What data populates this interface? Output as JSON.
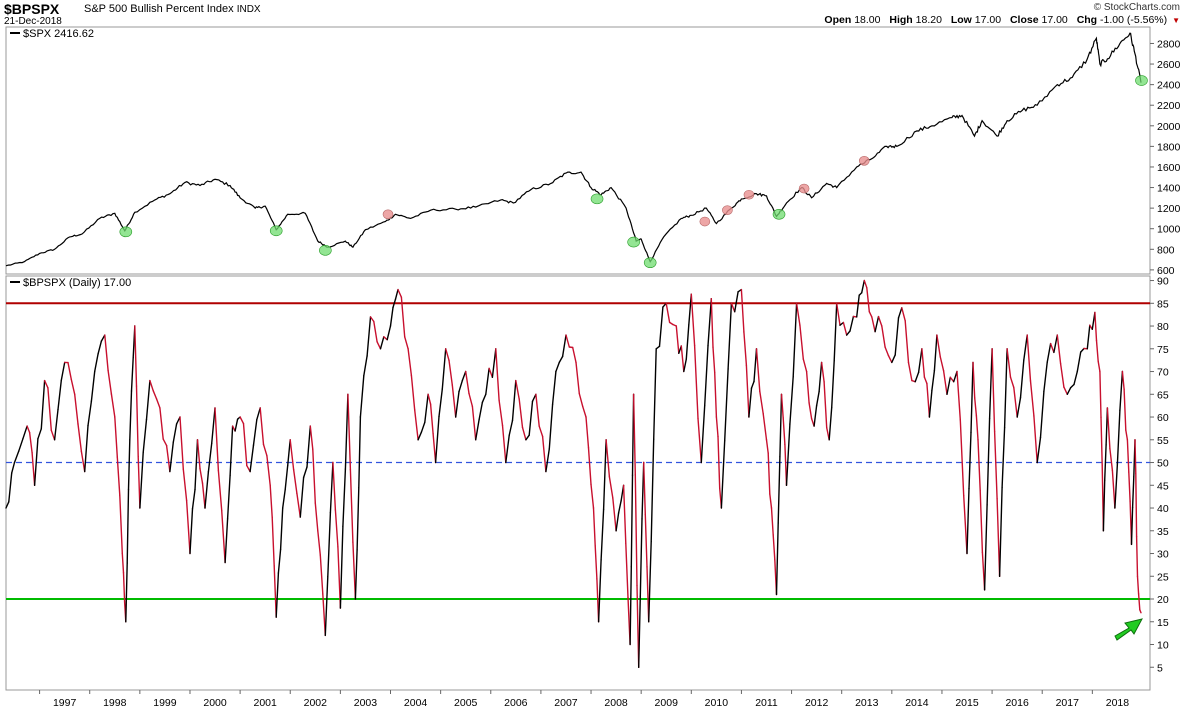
{
  "header": {
    "symbol": "$BPSPX",
    "name": "S&P 500 Bullish Percent Index",
    "exchange": "INDX",
    "date": "21-Dec-2018",
    "credit": "© StockCharts.com",
    "quote": {
      "open_label": "Open",
      "open": "18.00",
      "high_label": "High",
      "high": "18.20",
      "low_label": "Low",
      "low": "17.00",
      "close_label": "Close",
      "close": "17.00",
      "chg_label": "Chg",
      "chg": "-1.00 (-5.56%)"
    }
  },
  "colors": {
    "spx_line": "#000000",
    "bp_line_up": "#000000",
    "bp_line_down": "#c8102e",
    "upper_line": "#b00000",
    "mid_line": "#3355dd",
    "lower_line": "#00bb00",
    "low_marker": "#6fdc6f",
    "high_marker": "#e89090",
    "arrow": "#22cc22"
  },
  "chart_data": [
    {
      "type": "line",
      "legend": "$SPX 2416.62",
      "y_ticks": [
        600,
        800,
        1000,
        1200,
        1400,
        1600,
        1800,
        2000,
        2200,
        2400,
        2600,
        2800
      ],
      "ylim": [
        560,
        2960
      ],
      "x": [
        1996.33,
        1996.7,
        1997.0,
        1997.3,
        1997.6,
        1997.85,
        1998.2,
        1998.5,
        1998.7,
        1998.9,
        1999.3,
        1999.6,
        1999.9,
        2000.2,
        2000.5,
        2000.8,
        2001.0,
        2001.3,
        2001.5,
        2001.72,
        2001.95,
        2002.3,
        2002.55,
        2002.75,
        2003.1,
        2003.25,
        2003.5,
        2003.9,
        2004.1,
        2004.4,
        2004.8,
        2005.3,
        2005.7,
        2006.2,
        2006.45,
        2006.8,
        2007.2,
        2007.5,
        2007.8,
        2008.0,
        2008.2,
        2008.4,
        2008.7,
        2008.9,
        2009.0,
        2009.18,
        2009.45,
        2009.8,
        2010.0,
        2010.3,
        2010.5,
        2010.8,
        2011.0,
        2011.3,
        2011.5,
        2011.7,
        2011.9,
        2012.2,
        2012.4,
        2012.7,
        2012.9,
        2013.3,
        2013.6,
        2013.9,
        2014.1,
        2014.5,
        2014.8,
        2015.2,
        2015.4,
        2015.65,
        2015.8,
        2016.1,
        2016.3,
        2016.6,
        2016.9,
        2017.3,
        2017.6,
        2017.9,
        2018.08,
        2018.15,
        2018.3,
        2018.55,
        2018.75,
        2018.85,
        2018.97
      ],
      "values": [
        640,
        680,
        760,
        800,
        920,
        950,
        1100,
        1150,
        980,
        1160,
        1280,
        1340,
        1450,
        1420,
        1480,
        1420,
        1300,
        1200,
        1220,
        990,
        1140,
        1150,
        880,
        820,
        880,
        820,
        990,
        1070,
        1140,
        1100,
        1180,
        1190,
        1210,
        1280,
        1250,
        1380,
        1440,
        1540,
        1550,
        1400,
        1330,
        1400,
        1200,
        880,
        900,
        680,
        920,
        1100,
        1130,
        1200,
        1050,
        1200,
        1290,
        1340,
        1320,
        1120,
        1250,
        1400,
        1300,
        1440,
        1400,
        1600,
        1680,
        1800,
        1800,
        1950,
        2000,
        2080,
        2100,
        1900,
        2050,
        1900,
        2050,
        2150,
        2200,
        2400,
        2470,
        2650,
        2850,
        2600,
        2650,
        2800,
        2900,
        2700,
        2420
      ],
      "low_markers": [
        [
          1998.72,
          970
        ],
        [
          2001.72,
          980
        ],
        [
          2002.7,
          790
        ],
        [
          2008.12,
          1290
        ],
        [
          2008.85,
          870
        ],
        [
          2009.18,
          670
        ],
        [
          2011.75,
          1140
        ],
        [
          2018.98,
          2440
        ]
      ],
      "high_markers": [
        [
          2003.95,
          1140
        ],
        [
          2010.27,
          1070
        ],
        [
          2010.72,
          1180
        ],
        [
          2011.15,
          1330
        ],
        [
          2012.25,
          1390
        ],
        [
          2013.45,
          1660
        ]
      ]
    },
    {
      "type": "line",
      "legend": "$BPSPX (Daily) 17.00",
      "y_ticks": [
        5,
        10,
        15,
        20,
        25,
        30,
        35,
        40,
        45,
        50,
        55,
        60,
        65,
        70,
        75,
        80,
        85,
        90
      ],
      "ylim": [
        0,
        91
      ],
      "x_ticks": [
        "1997",
        "1998",
        "1999",
        "2000",
        "2001",
        "2002",
        "2003",
        "2004",
        "2005",
        "2006",
        "2007",
        "2008",
        "2009",
        "2010",
        "2011",
        "2012",
        "2013",
        "2014",
        "2015",
        "2016",
        "2017",
        "2018"
      ],
      "xlim": [
        1996.33,
        2019.15
      ],
      "reference_lines": {
        "upper": 85,
        "middle": 50,
        "lower": 20
      },
      "x": [
        1996.33,
        1996.5,
        1996.75,
        1996.9,
        1997.1,
        1997.3,
        1997.5,
        1997.7,
        1997.9,
        1998.1,
        1998.3,
        1998.5,
        1998.65,
        1998.72,
        1998.8,
        1998.9,
        1999.0,
        1999.2,
        1999.4,
        1999.6,
        1999.8,
        2000.0,
        2000.15,
        2000.3,
        2000.5,
        2000.7,
        2000.85,
        2001.0,
        2001.2,
        2001.4,
        2001.6,
        2001.72,
        2001.85,
        2002.0,
        2002.2,
        2002.4,
        2002.55,
        2002.7,
        2002.85,
        2003.0,
        2003.15,
        2003.3,
        2003.4,
        2003.6,
        2003.8,
        2004.0,
        2004.15,
        2004.35,
        2004.55,
        2004.75,
        2004.9,
        2005.1,
        2005.3,
        2005.5,
        2005.7,
        2005.9,
        2006.1,
        2006.3,
        2006.5,
        2006.7,
        2006.9,
        2007.1,
        2007.3,
        2007.5,
        2007.7,
        2007.9,
        2008.05,
        2008.15,
        2008.3,
        2008.5,
        2008.65,
        2008.78,
        2008.85,
        2008.95,
        2009.05,
        2009.15,
        2009.3,
        2009.5,
        2009.7,
        2009.85,
        2010.0,
        2010.2,
        2010.4,
        2010.5,
        2010.6,
        2010.8,
        2011.0,
        2011.15,
        2011.3,
        2011.5,
        2011.6,
        2011.7,
        2011.8,
        2011.9,
        2012.1,
        2012.3,
        2012.45,
        2012.6,
        2012.75,
        2012.9,
        2013.1,
        2013.3,
        2013.45,
        2013.6,
        2013.8,
        2014.0,
        2014.2,
        2014.4,
        2014.6,
        2014.75,
        2014.9,
        2015.1,
        2015.3,
        2015.5,
        2015.62,
        2015.72,
        2015.85,
        2016.0,
        2016.15,
        2016.3,
        2016.5,
        2016.7,
        2016.9,
        2017.1,
        2017.3,
        2017.5,
        2017.7,
        2017.9,
        2018.05,
        2018.15,
        2018.22,
        2018.3,
        2018.45,
        2018.6,
        2018.7,
        2018.78,
        2018.85,
        2018.9,
        2018.97
      ],
      "values": [
        40,
        50,
        58,
        45,
        68,
        55,
        72,
        65,
        48,
        70,
        78,
        60,
        30,
        15,
        55,
        80,
        40,
        68,
        62,
        48,
        60,
        30,
        55,
        40,
        62,
        28,
        58,
        60,
        48,
        62,
        45,
        16,
        40,
        55,
        38,
        58,
        35,
        12,
        50,
        18,
        65,
        20,
        60,
        82,
        75,
        80,
        88,
        75,
        55,
        65,
        50,
        75,
        60,
        70,
        55,
        65,
        75,
        50,
        68,
        55,
        65,
        48,
        70,
        78,
        72,
        60,
        40,
        15,
        55,
        35,
        45,
        10,
        65,
        5,
        50,
        15,
        75,
        85,
        80,
        70,
        87,
        50,
        86,
        60,
        40,
        85,
        88,
        60,
        75,
        55,
        40,
        21,
        65,
        45,
        85,
        70,
        58,
        72,
        55,
        85,
        78,
        82,
        90,
        82,
        80,
        72,
        84,
        68,
        75,
        60,
        78,
        65,
        70,
        30,
        72,
        55,
        22,
        75,
        25,
        75,
        60,
        78,
        50,
        72,
        78,
        65,
        70,
        75,
        83,
        70,
        35,
        62,
        40,
        70,
        55,
        32,
        55,
        25,
        17
      ]
    }
  ],
  "annotation": {
    "arrow": "up-right-arrow"
  }
}
